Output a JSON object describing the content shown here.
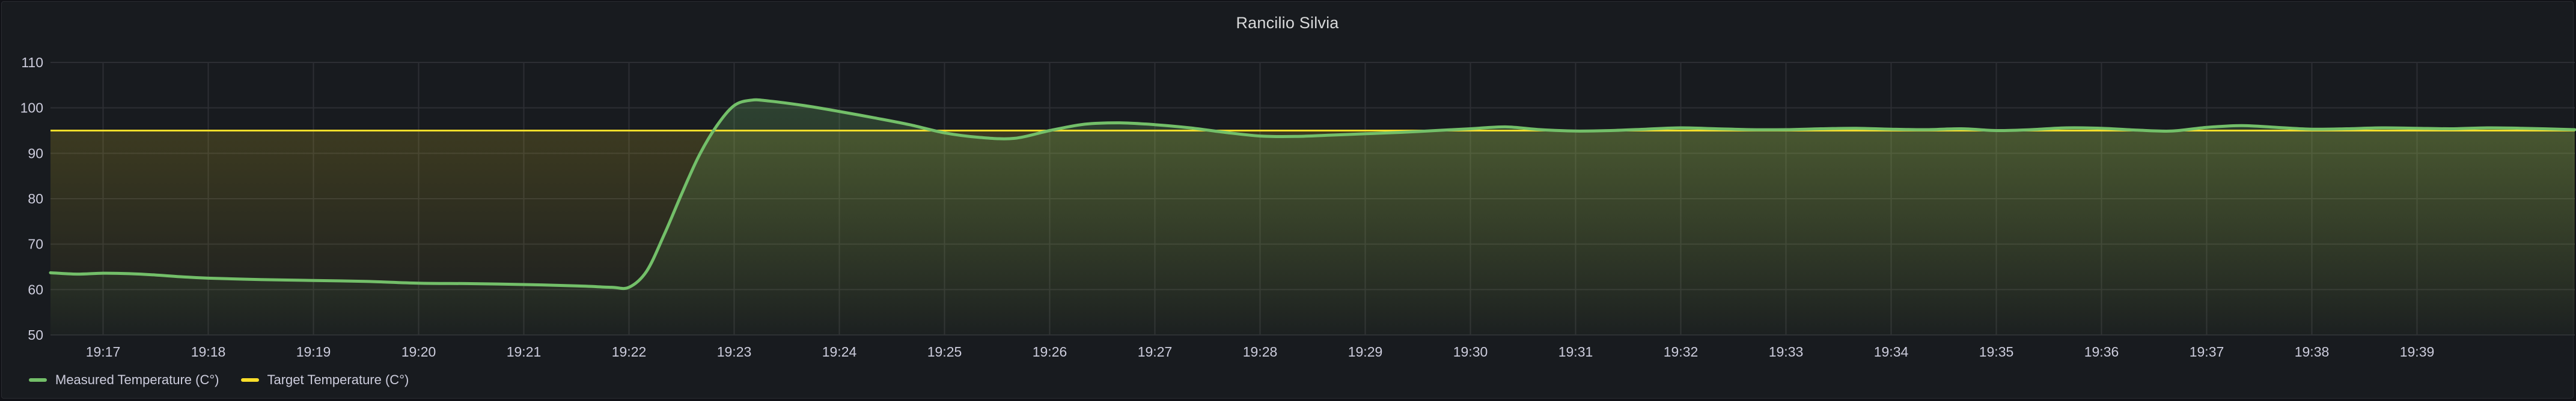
{
  "panel": {
    "title": "Rancilio Silvia"
  },
  "colors": {
    "measured": "#73bf69",
    "target": "#fade2a",
    "grid": "#2c2e33",
    "background": "#181b1f"
  },
  "chart_data": {
    "type": "line",
    "title": "Rancilio Silvia",
    "xlabel": "",
    "ylabel": "",
    "x_ticks": [
      "19:17",
      "19:18",
      "19:19",
      "19:20",
      "19:21",
      "19:22",
      "19:23",
      "19:24",
      "19:25",
      "19:26",
      "19:27",
      "19:28",
      "19:29",
      "19:30",
      "19:31",
      "19:32",
      "19:33",
      "19:34",
      "19:35",
      "19:36",
      "19:37",
      "19:38",
      "19:39"
    ],
    "xlim": [
      "19:16:30",
      "19:40:30"
    ],
    "y_ticks": [
      50,
      60,
      70,
      80,
      90,
      100,
      110
    ],
    "ylim": [
      50,
      110
    ],
    "grid": true,
    "legend_position": "bottom-left",
    "series": [
      {
        "name": "Measured Temperature (C°)",
        "color": "#73bf69",
        "fill": "gradient",
        "x": [
          "19:16:30",
          "19:16:45",
          "19:17:00",
          "19:17:15",
          "19:17:30",
          "19:17:45",
          "19:18:00",
          "19:18:30",
          "19:19:00",
          "19:19:30",
          "19:20:00",
          "19:20:30",
          "19:21:00",
          "19:21:30",
          "19:21:50",
          "19:22:00",
          "19:22:10",
          "19:22:20",
          "19:22:30",
          "19:22:40",
          "19:22:50",
          "19:23:00",
          "19:23:10",
          "19:23:20",
          "19:23:40",
          "19:24:00",
          "19:24:20",
          "19:24:40",
          "19:25:00",
          "19:25:20",
          "19:25:40",
          "19:26:00",
          "19:26:20",
          "19:26:40",
          "19:27:00",
          "19:27:20",
          "19:27:40",
          "19:28:00",
          "19:28:20",
          "19:28:40",
          "19:29:00",
          "19:29:20",
          "19:29:40",
          "19:30:00",
          "19:30:20",
          "19:30:40",
          "19:31:00",
          "19:31:20",
          "19:31:40",
          "19:32:00",
          "19:32:20",
          "19:32:40",
          "19:33:00",
          "19:33:20",
          "19:33:40",
          "19:34:00",
          "19:34:20",
          "19:34:40",
          "19:35:00",
          "19:35:20",
          "19:35:40",
          "19:36:00",
          "19:36:20",
          "19:36:40",
          "19:37:00",
          "19:37:20",
          "19:37:40",
          "19:38:00",
          "19:38:20",
          "19:38:40",
          "19:39:00",
          "19:39:20",
          "19:39:40",
          "19:40:00",
          "19:40:30"
        ],
        "values": [
          63.7,
          63.4,
          63.6,
          63.5,
          63.2,
          62.8,
          62.5,
          62.2,
          62.0,
          61.8,
          61.4,
          61.3,
          61.1,
          60.8,
          60.5,
          60.5,
          64.0,
          72.0,
          81.0,
          89.5,
          96.0,
          100.5,
          101.7,
          101.5,
          100.5,
          99.2,
          97.8,
          96.3,
          94.5,
          93.5,
          93.3,
          95.0,
          96.4,
          96.7,
          96.3,
          95.6,
          94.6,
          93.8,
          93.7,
          94.0,
          94.3,
          94.6,
          95.0,
          95.4,
          95.8,
          95.2,
          94.9,
          95.0,
          95.3,
          95.6,
          95.4,
          95.2,
          95.2,
          95.4,
          95.5,
          95.3,
          95.2,
          95.4,
          95.0,
          95.2,
          95.6,
          95.5,
          95.1,
          94.9,
          95.7,
          96.1,
          95.7,
          95.3,
          95.4,
          95.6,
          95.5,
          95.4,
          95.6,
          95.5,
          95.2
        ]
      },
      {
        "name": "Target Temperature (C°)",
        "color": "#fade2a",
        "x": [
          "19:16:30",
          "19:40:30"
        ],
        "values": [
          95,
          95
        ]
      }
    ]
  }
}
